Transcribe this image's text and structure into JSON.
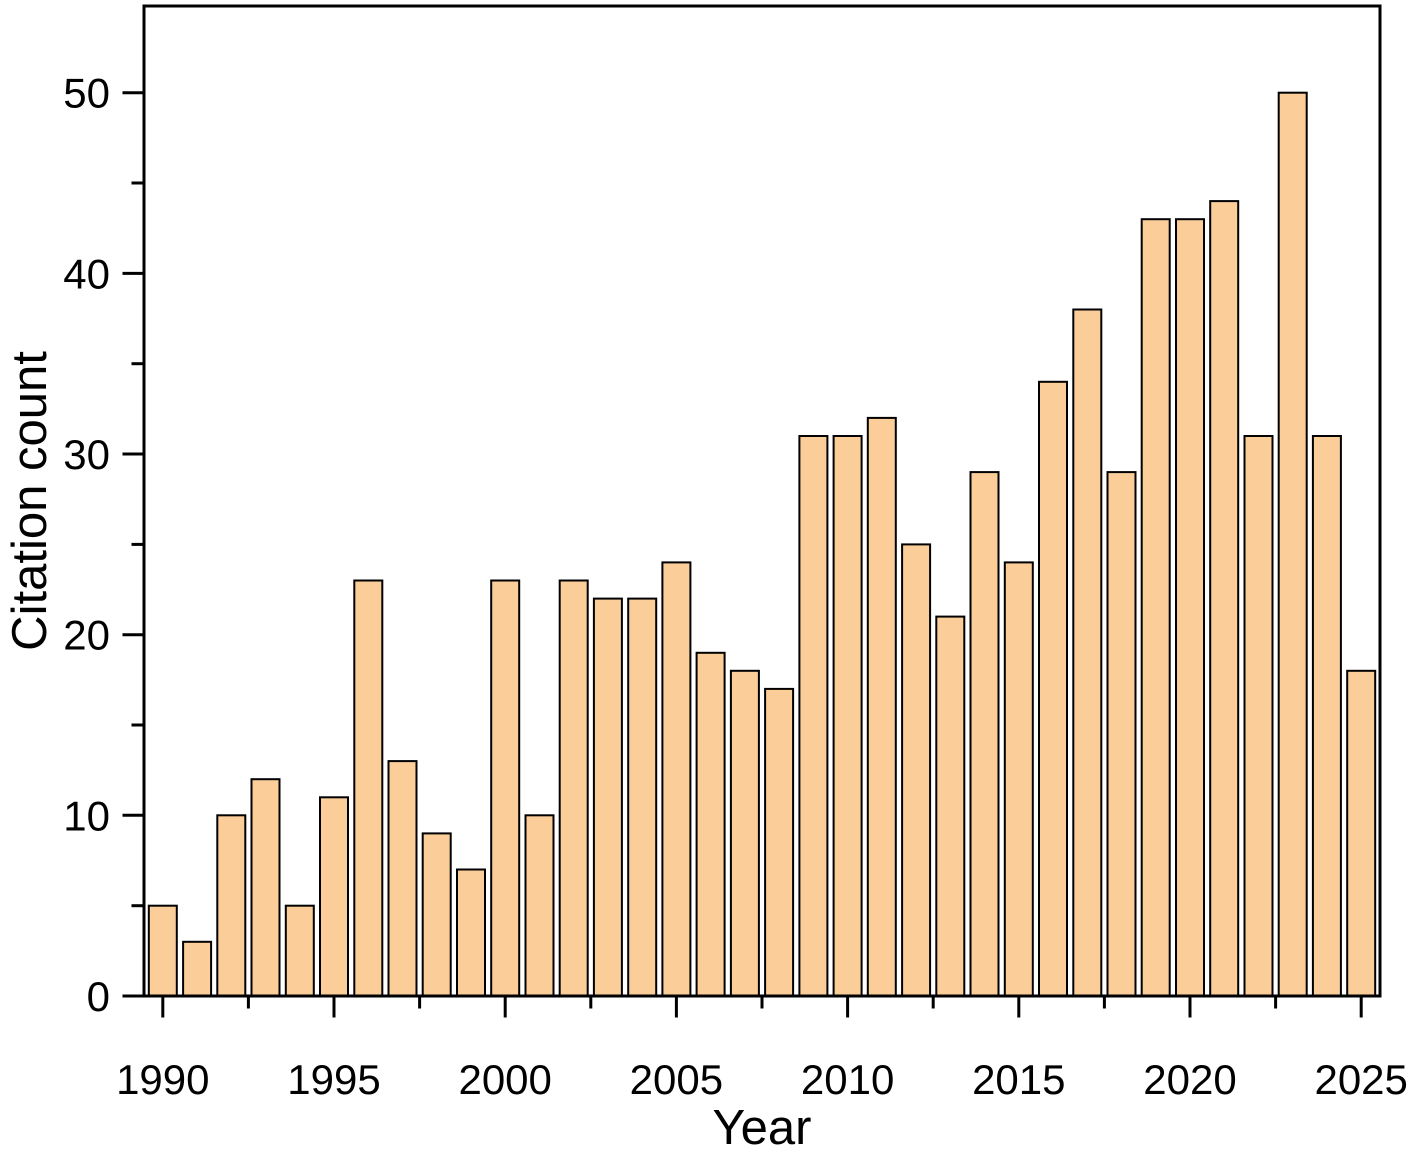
{
  "chart_data": {
    "type": "bar",
    "xlabel": "Year",
    "ylabel": "Citation count",
    "x": [
      1990,
      1991,
      1992,
      1993,
      1994,
      1995,
      1996,
      1997,
      1998,
      1999,
      2000,
      2001,
      2002,
      2003,
      2004,
      2005,
      2006,
      2007,
      2008,
      2009,
      2010,
      2011,
      2012,
      2013,
      2014,
      2015,
      2016,
      2017,
      2018,
      2019,
      2020,
      2021,
      2022,
      2023,
      2024,
      2025
    ],
    "values": [
      5,
      3,
      10,
      12,
      5,
      11,
      23,
      13,
      9,
      7,
      23,
      10,
      23,
      22,
      22,
      24,
      19,
      18,
      17,
      31,
      31,
      32,
      25,
      21,
      29,
      24,
      34,
      38,
      29,
      43,
      43,
      44,
      31,
      50,
      31,
      18
    ],
    "xlim": [
      1989.45,
      2025.55
    ],
    "ylim": [
      0,
      54.8
    ],
    "x_major_ticks": [
      1990,
      1995,
      2000,
      2005,
      2010,
      2015,
      2020,
      2025
    ],
    "x_minor_ticks": [
      1992.5,
      1997.5,
      2002.5,
      2007.5,
      2012.5,
      2017.5,
      2022.5
    ],
    "y_major_ticks": [
      0,
      10,
      20,
      30,
      40,
      50
    ],
    "y_minor_ticks": [
      5,
      15,
      25,
      35,
      45
    ],
    "grid": false,
    "legend": null,
    "bar_fill": "#FBCE99",
    "bar_stroke": "#000000",
    "axis_color": "#000000",
    "background": "#FFFFFF"
  }
}
